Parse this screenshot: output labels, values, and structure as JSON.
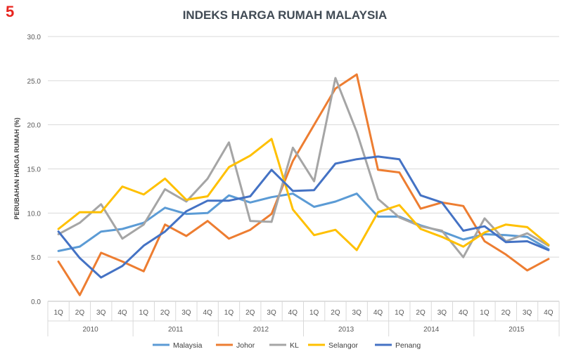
{
  "page_badge": "5",
  "chart_data": {
    "type": "line",
    "title": "INDEKS HARGA RUMAH MALAYSIA",
    "ylabel": "PERUBAHAN HARGA RUMAH (%)",
    "xlabel": "",
    "ylim": [
      0,
      30
    ],
    "yticks": [
      "0.0",
      "5.0",
      "10.0",
      "15.0",
      "20.0",
      "25.0",
      "30.0"
    ],
    "grid": true,
    "legend_position": "bottom",
    "quarters": [
      "1Q",
      "2Q",
      "3Q",
      "4Q",
      "1Q",
      "2Q",
      "3Q",
      "4Q",
      "1Q",
      "2Q",
      "3Q",
      "4Q",
      "1Q",
      "2Q",
      "3Q",
      "4Q",
      "1Q",
      "2Q",
      "3Q",
      "4Q",
      "1Q",
      "2Q",
      "3Q",
      "4Q"
    ],
    "years": [
      "2010",
      "2011",
      "2012",
      "2013",
      "2014",
      "2015"
    ],
    "series": [
      {
        "name": "Malaysia",
        "color": "#5b9bd5",
        "values": [
          5.7,
          6.2,
          7.9,
          8.2,
          8.9,
          10.6,
          9.9,
          10.0,
          12.0,
          11.2,
          11.8,
          12.2,
          10.7,
          11.3,
          12.2,
          9.6,
          9.6,
          8.6,
          7.9,
          7.0,
          7.6,
          7.5,
          7.3,
          5.9
        ]
      },
      {
        "name": "Johor",
        "color": "#ed7d31",
        "values": [
          4.5,
          0.7,
          5.5,
          4.5,
          3.4,
          8.7,
          7.4,
          9.1,
          7.1,
          8.1,
          9.9,
          15.9,
          20.0,
          24.1,
          25.7,
          14.9,
          14.6,
          10.5,
          11.2,
          10.8,
          6.8,
          5.3,
          3.5,
          4.8
        ]
      },
      {
        "name": "KL",
        "color": "#a5a5a5",
        "values": [
          7.6,
          8.9,
          11.0,
          7.1,
          8.7,
          12.7,
          11.3,
          13.9,
          18.0,
          9.1,
          9.0,
          17.4,
          13.6,
          25.3,
          19.2,
          11.6,
          9.5,
          8.5,
          8.0,
          5.0,
          9.4,
          6.8,
          7.7,
          6.3
        ]
      },
      {
        "name": "Selangor",
        "color": "#ffc000",
        "values": [
          8.2,
          10.1,
          10.1,
          13.0,
          12.1,
          13.9,
          11.5,
          11.9,
          15.2,
          16.5,
          18.4,
          10.4,
          7.5,
          8.1,
          5.8,
          10.1,
          10.9,
          8.2,
          7.3,
          6.2,
          7.8,
          8.7,
          8.4,
          6.4
        ]
      },
      {
        "name": "Penang",
        "color": "#4472c4",
        "values": [
          7.9,
          4.9,
          2.7,
          4.0,
          6.3,
          7.9,
          10.2,
          11.4,
          11.4,
          11.9,
          14.9,
          12.5,
          12.6,
          15.6,
          16.1,
          16.4,
          16.1,
          12.0,
          11.2,
          8.0,
          8.5,
          6.7,
          6.8,
          5.8
        ]
      }
    ]
  }
}
